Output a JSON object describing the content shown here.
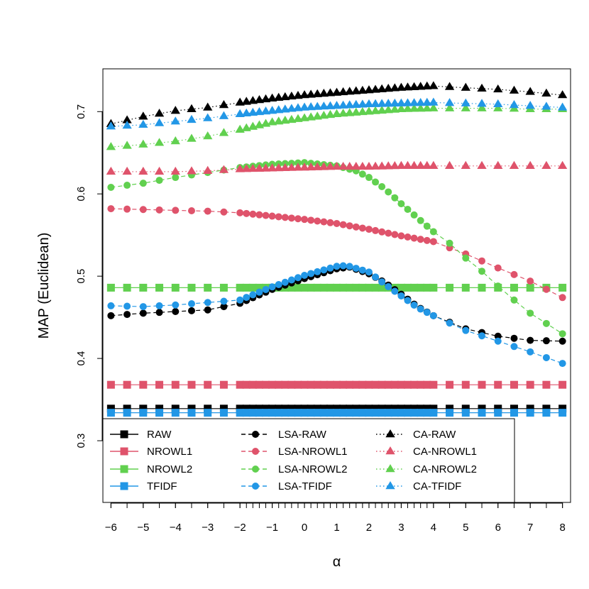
{
  "chart_data": {
    "type": "line",
    "xlabel": "α",
    "ylabel": "MAP (Euclidean)",
    "xlim": [
      -6.25,
      8.25
    ],
    "ylim": [
      0.225,
      0.752
    ],
    "x_tick_labels": [
      "−6",
      "−5",
      "−4",
      "−3",
      "−2",
      "−1",
      "0",
      "1",
      "2",
      "3",
      "4",
      "5",
      "6",
      "7",
      "8"
    ],
    "x_ticks": [
      -6,
      -5,
      -4,
      -3,
      -2,
      -1,
      0,
      1,
      2,
      3,
      4,
      5,
      6,
      7,
      8
    ],
    "x_minor_ticks_coarse": [
      -6,
      -5.5,
      -5,
      -4.5,
      -4,
      -3.5,
      -3,
      -2.5,
      4.5,
      5,
      5.5,
      6,
      6.5,
      7,
      7.5,
      8
    ],
    "x_fine_range": [
      -2,
      4,
      0.2
    ],
    "y_ticks": [
      0.3,
      0.4,
      0.5,
      0.6,
      0.7
    ],
    "y_tick_labels": [
      "0.3",
      "0.4",
      "0.5",
      "0.6",
      "0.7"
    ],
    "grid": false,
    "legend_position": "bottom-left",
    "colors": {
      "RAW": "#000000",
      "NROWL1": "#DF536B",
      "NROWL2": "#61D04F",
      "TFIDF": "#2297E6"
    },
    "series": [
      {
        "name": "RAW",
        "style": "solid",
        "marker": "square",
        "color": "#000000",
        "constant": 0.339
      },
      {
        "name": "NROWL1",
        "style": "solid",
        "marker": "square",
        "color": "#DF536B",
        "constant": 0.368
      },
      {
        "name": "NROWL2",
        "style": "solid",
        "marker": "square",
        "color": "#61D04F",
        "constant": 0.486
      },
      {
        "name": "TFIDF",
        "style": "solid",
        "marker": "square",
        "color": "#2297E6",
        "constant": 0.334
      },
      {
        "name": "LSA-RAW",
        "style": "dashed",
        "marker": "circle",
        "color": "#000000",
        "points": [
          [
            -6,
            0.452
          ],
          [
            -5,
            0.455
          ],
          [
            -4,
            0.457
          ],
          [
            -3,
            0.459
          ],
          [
            -2,
            0.467
          ],
          [
            -1,
            0.484
          ],
          [
            0,
            0.497
          ],
          [
            0.5,
            0.503
          ],
          [
            1,
            0.509
          ],
          [
            1.4,
            0.511
          ],
          [
            2,
            0.503
          ],
          [
            2.5,
            0.492
          ],
          [
            3,
            0.478
          ],
          [
            3.5,
            0.463
          ],
          [
            4,
            0.452
          ],
          [
            5,
            0.436
          ],
          [
            6,
            0.427
          ],
          [
            7,
            0.422
          ],
          [
            8,
            0.421
          ]
        ]
      },
      {
        "name": "LSA-NROWL1",
        "style": "dashed",
        "marker": "circle",
        "color": "#DF536B",
        "points": [
          [
            -6,
            0.582
          ],
          [
            -5,
            0.581
          ],
          [
            -4,
            0.58
          ],
          [
            -3,
            0.579
          ],
          [
            -2,
            0.577
          ],
          [
            -1,
            0.573
          ],
          [
            0,
            0.569
          ],
          [
            1,
            0.564
          ],
          [
            2,
            0.557
          ],
          [
            3,
            0.549
          ],
          [
            4,
            0.542
          ],
          [
            5,
            0.527
          ],
          [
            6,
            0.51
          ],
          [
            7,
            0.494
          ],
          [
            8,
            0.474
          ]
        ]
      },
      {
        "name": "LSA-NROWL2",
        "style": "dashed",
        "marker": "circle",
        "color": "#61D04F",
        "points": [
          [
            -6,
            0.608
          ],
          [
            -5,
            0.613
          ],
          [
            -4,
            0.62
          ],
          [
            -3,
            0.626
          ],
          [
            -2,
            0.632
          ],
          [
            -1,
            0.636
          ],
          [
            0,
            0.638
          ],
          [
            1,
            0.634
          ],
          [
            1.6,
            0.628
          ],
          [
            2,
            0.62
          ],
          [
            2.5,
            0.606
          ],
          [
            3,
            0.588
          ],
          [
            3.5,
            0.571
          ],
          [
            4,
            0.554
          ],
          [
            4.5,
            0.54
          ],
          [
            5,
            0.522
          ],
          [
            5.5,
            0.506
          ],
          [
            6,
            0.488
          ],
          [
            6.5,
            0.471
          ],
          [
            7,
            0.455
          ],
          [
            8,
            0.43
          ]
        ]
      },
      {
        "name": "LSA-TFIDF",
        "style": "dashed",
        "marker": "circle",
        "color": "#2297E6",
        "points": [
          [
            -6,
            0.464
          ],
          [
            -5,
            0.463
          ],
          [
            -4,
            0.465
          ],
          [
            -3,
            0.468
          ],
          [
            -2,
            0.471
          ],
          [
            -1,
            0.487
          ],
          [
            0,
            0.501
          ],
          [
            1,
            0.512
          ],
          [
            1.3,
            0.513
          ],
          [
            2,
            0.505
          ],
          [
            2.5,
            0.49
          ],
          [
            3,
            0.476
          ],
          [
            3.5,
            0.462
          ],
          [
            4,
            0.452
          ],
          [
            5,
            0.434
          ],
          [
            6,
            0.421
          ],
          [
            7,
            0.408
          ],
          [
            8,
            0.394
          ]
        ]
      },
      {
        "name": "CA-RAW",
        "style": "dotted",
        "marker": "triangle",
        "color": "#000000",
        "points": [
          [
            -6,
            0.685
          ],
          [
            -5,
            0.694
          ],
          [
            -4,
            0.701
          ],
          [
            -3,
            0.705
          ],
          [
            -2,
            0.711
          ],
          [
            -1,
            0.716
          ],
          [
            0,
            0.72
          ],
          [
            1,
            0.723
          ],
          [
            2,
            0.726
          ],
          [
            3,
            0.729
          ],
          [
            4,
            0.731
          ],
          [
            5,
            0.729
          ],
          [
            6,
            0.727
          ],
          [
            7,
            0.724
          ],
          [
            8,
            0.72
          ]
        ]
      },
      {
        "name": "CA-NROWL1",
        "style": "dotted",
        "marker": "triangle",
        "color": "#DF536B",
        "points": [
          [
            -6,
            0.627
          ],
          [
            -5,
            0.627
          ],
          [
            -4,
            0.627
          ],
          [
            -3,
            0.628
          ],
          [
            -2,
            0.63
          ],
          [
            -1,
            0.631
          ],
          [
            0,
            0.632
          ],
          [
            1,
            0.633
          ],
          [
            2,
            0.633
          ],
          [
            3,
            0.634
          ],
          [
            4,
            0.634
          ],
          [
            5,
            0.634
          ],
          [
            6,
            0.634
          ],
          [
            7,
            0.634
          ],
          [
            8,
            0.634
          ]
        ]
      },
      {
        "name": "CA-NROWL2",
        "style": "dotted",
        "marker": "triangle",
        "color": "#61D04F",
        "points": [
          [
            -6,
            0.657
          ],
          [
            -5,
            0.66
          ],
          [
            -4,
            0.664
          ],
          [
            -3,
            0.67
          ],
          [
            -2,
            0.678
          ],
          [
            -1,
            0.687
          ],
          [
            0,
            0.692
          ],
          [
            1,
            0.697
          ],
          [
            2,
            0.7
          ],
          [
            3,
            0.703
          ],
          [
            4,
            0.704
          ],
          [
            5,
            0.704
          ],
          [
            6,
            0.704
          ],
          [
            7,
            0.703
          ],
          [
            8,
            0.703
          ]
        ]
      },
      {
        "name": "CA-TFIDF",
        "style": "dotted",
        "marker": "triangle",
        "color": "#2297E6",
        "points": [
          [
            -6,
            0.682
          ],
          [
            -5,
            0.684
          ],
          [
            -4,
            0.688
          ],
          [
            -3,
            0.692
          ],
          [
            -2,
            0.697
          ],
          [
            -1,
            0.701
          ],
          [
            0,
            0.705
          ],
          [
            1,
            0.707
          ],
          [
            2,
            0.709
          ],
          [
            3,
            0.71
          ],
          [
            4,
            0.711
          ],
          [
            5,
            0.71
          ],
          [
            6,
            0.709
          ],
          [
            7,
            0.707
          ],
          [
            8,
            0.705
          ]
        ]
      }
    ]
  }
}
